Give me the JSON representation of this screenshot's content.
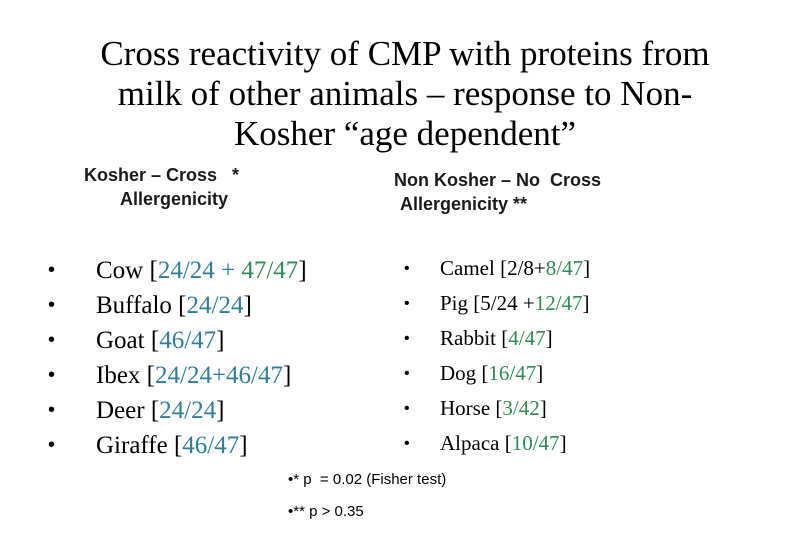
{
  "title": {
    "line1": "Cross reactivity of CMP with proteins from",
    "line2": "milk of other animals – response to Non-",
    "line3": "Kosher “age dependent”"
  },
  "left_heading": {
    "line1": "Kosher – Cross   *",
    "line2": "Allergenicity"
  },
  "right_heading": {
    "line1": "Non Kosher – No  Cross",
    "line2": "Allergenicity **"
  },
  "left_list": [
    {
      "name": "Cow",
      "open": " [",
      "part1": "24/24 + ",
      "part2": "47/47",
      "close": "]"
    },
    {
      "name": "Buffalo",
      "open": " [",
      "part1": "24/24",
      "part2": "",
      "close": "]"
    },
    {
      "name": "Goat",
      "open": " [",
      "part1": "46/47",
      "part2": "",
      "close": "]"
    },
    {
      "name": "Ibex",
      "open": " [",
      "part1": "24/24+46/47",
      "part2": "",
      "close": "]"
    },
    {
      "name": "Deer",
      "open": " [",
      "part1": "24/24",
      "part2": "",
      "close": "]"
    },
    {
      "name": "Giraffe",
      "open": " [",
      "part1": "46/47",
      "part2": "",
      "close": "]"
    }
  ],
  "right_list": [
    {
      "name": "Camel",
      "open": " [2/8+",
      "part1": "8/47",
      "close": "]"
    },
    {
      "name": "Pig",
      "open": " [5/24 +",
      "part1": "12/47",
      "close": "]"
    },
    {
      "name": "Rabbit",
      "open": " [",
      "part1": "4/47",
      "close": "]"
    },
    {
      "name": "Dog",
      "open": " [",
      "part1": "16/47",
      "close": "]"
    },
    {
      "name": "Horse",
      "open": " [",
      "part1": "3/42",
      "close": "]"
    },
    {
      "name": "Alpaca",
      "open": " [",
      "part1": "10/47",
      "close": "]"
    }
  ],
  "bullet": "•",
  "notes": {
    "n1": "•* p  = 0.02 (Fisher test)",
    "n2": "•** p > 0.35"
  },
  "colors": {
    "number_blue": "#2e7d9c",
    "number_green": "#2e8b57"
  }
}
